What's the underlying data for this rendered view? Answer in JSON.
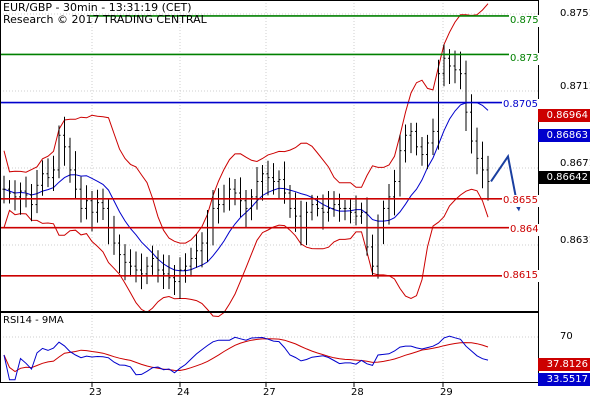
{
  "header": {
    "title": "EUR/GBP - 30min - 13:31:19 (CET)",
    "research": "Research © 2017 TRADING CENTRAL"
  },
  "chart_data": {
    "type": "candlestick",
    "symbol": "EUR/GBP",
    "timeframe": "30min",
    "price_axis": {
      "ticks": [
        "0.8751",
        "0.8711",
        "0.8671",
        "0.8631"
      ],
      "range": [
        0.86,
        0.876
      ]
    },
    "date_axis": {
      "ticks": [
        "23",
        "24",
        "27",
        "28",
        "29"
      ]
    },
    "levels": [
      {
        "value": "0.875",
        "color": "#008000",
        "kind": "resistance"
      },
      {
        "value": "0.873",
        "color": "#008000",
        "kind": "resistance"
      },
      {
        "value": "0.8705",
        "color": "#0000cc",
        "kind": "pivot"
      },
      {
        "value": "0.8655",
        "color": "#cc0000",
        "kind": "support"
      },
      {
        "value": "0.864",
        "color": "#cc0000",
        "kind": "support"
      },
      {
        "value": "0.8615",
        "color": "#cc0000",
        "kind": "support"
      }
    ],
    "price_tags": [
      {
        "value": "0.86964",
        "color": "#cc0000",
        "role": "upper-band"
      },
      {
        "value": "0.86863",
        "color": "#0000cc",
        "role": "moving-average"
      },
      {
        "value": "0.86642",
        "color": "#000000",
        "role": "last-price"
      }
    ],
    "price_close": [
      0.866,
      0.8658,
      0.8656,
      0.8659,
      0.8657,
      0.8652,
      0.8662,
      0.8668,
      0.8666,
      0.867,
      0.8688,
      0.8682,
      0.867,
      0.866,
      0.865,
      0.8654,
      0.8648,
      0.8653,
      0.865,
      0.864,
      0.8632,
      0.8626,
      0.8622,
      0.862,
      0.8618,
      0.8616,
      0.862,
      0.8624,
      0.8618,
      0.8616,
      0.8614,
      0.8612,
      0.8618,
      0.862,
      0.8624,
      0.8628,
      0.8632,
      0.864,
      0.865,
      0.8652,
      0.8655,
      0.866,
      0.8658,
      0.8654,
      0.865,
      0.8656,
      0.8664,
      0.8668,
      0.8666,
      0.8664,
      0.8665,
      0.8658,
      0.865,
      0.8646,
      0.864,
      0.8648,
      0.8652,
      0.865,
      0.8648,
      0.865,
      0.8652,
      0.865,
      0.865,
      0.8648,
      0.8646,
      0.8648,
      0.863,
      0.862,
      0.864,
      0.865,
      0.8656,
      0.8664,
      0.868,
      0.8688,
      0.869,
      0.8682,
      0.8678,
      0.8684,
      0.869,
      0.872,
      0.8728,
      0.8724,
      0.8722,
      0.872,
      0.87,
      0.8685,
      0.8676,
      0.867,
      0.8664
    ],
    "forecast": {
      "from": 0.8664,
      "peak": 0.8677,
      "target": 0.865
    },
    "rsi": {
      "label": "RSI14 - 9MA",
      "ticks": [
        "70"
      ],
      "value_tags": [
        {
          "value": "37.8126",
          "color": "#cc0000",
          "role": "rsi-ma"
        },
        {
          "value": "33.5517",
          "color": "#0000cc",
          "role": "rsi"
        }
      ],
      "range": [
        20,
        80
      ]
    }
  }
}
